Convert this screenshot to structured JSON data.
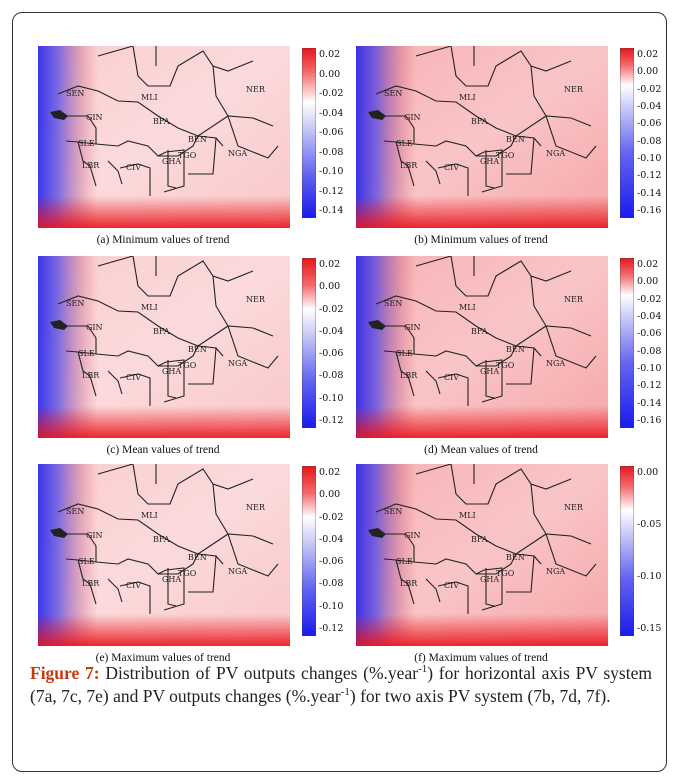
{
  "panels": [
    {
      "caption": "(a) Minimum values of trend",
      "ticks": [
        "0.02",
        "0.00",
        "-0.02",
        "-0.04",
        "-0.06",
        "-0.08",
        "-0.10",
        "-0.12",
        "-0.14"
      ],
      "stops": [
        0.14,
        0.32,
        0.47,
        0.74,
        1.0
      ]
    },
    {
      "caption": "(b) Minimum values of trend",
      "ticks": [
        "0.02",
        "0.00",
        "-0.02",
        "-0.04",
        "-0.06",
        "-0.08",
        "-0.10",
        "-0.12",
        "-0.14",
        "-0.16"
      ],
      "stops": [
        0.1,
        0.22,
        0.35,
        0.62,
        1.0
      ]
    },
    {
      "caption": "(c) Mean values of trend",
      "ticks": [
        "0.02",
        "0.00",
        "-0.02",
        "-0.04",
        "-0.06",
        "-0.08",
        "-0.10",
        "-0.12"
      ],
      "stops": [
        0.16,
        0.3,
        0.45,
        0.72,
        1.0
      ]
    },
    {
      "caption": "(d) Mean values of trend",
      "ticks": [
        "0.02",
        "0.00",
        "-0.02",
        "-0.04",
        "-0.06",
        "-0.08",
        "-0.10",
        "-0.12",
        "-0.14",
        "-0.16"
      ],
      "stops": [
        0.1,
        0.22,
        0.35,
        0.62,
        1.0
      ]
    },
    {
      "caption": "(e) Maximum values of trend",
      "ticks": [
        "0.02",
        "0.00",
        "-0.02",
        "-0.04",
        "-0.06",
        "-0.08",
        "-0.10",
        "-0.12"
      ],
      "stops": [
        0.16,
        0.3,
        0.45,
        0.72,
        1.0
      ]
    },
    {
      "caption": "(f) Maximum values of trend",
      "ticks": [
        "0.00",
        "-0.05",
        "-0.10",
        "-0.15"
      ],
      "stops": [
        0.12,
        0.26,
        0.4,
        0.66,
        1.0
      ]
    }
  ],
  "country_labels": [
    "MLI",
    "NER",
    "SEN",
    "GIN",
    "BFA",
    "BEN",
    "TGO",
    "SLE",
    "LBR",
    "CIV",
    "GHA",
    "NGA"
  ],
  "caption": {
    "figure_label": "Figure 7:",
    "part1": " Distribution of PV outputs changes (%.year",
    "sup1": "-1",
    "part2": ") for horizontal axis PV system (7a, 7c, 7e) and PV outputs changes (%.year",
    "sup2": "-1",
    "part3": ") for two axis PV system (7b, 7d, 7f)."
  },
  "colors": {
    "red": "#e8151c",
    "blue": "#1a1aee",
    "white": "#ffffff",
    "accent": "#c43a0b"
  }
}
